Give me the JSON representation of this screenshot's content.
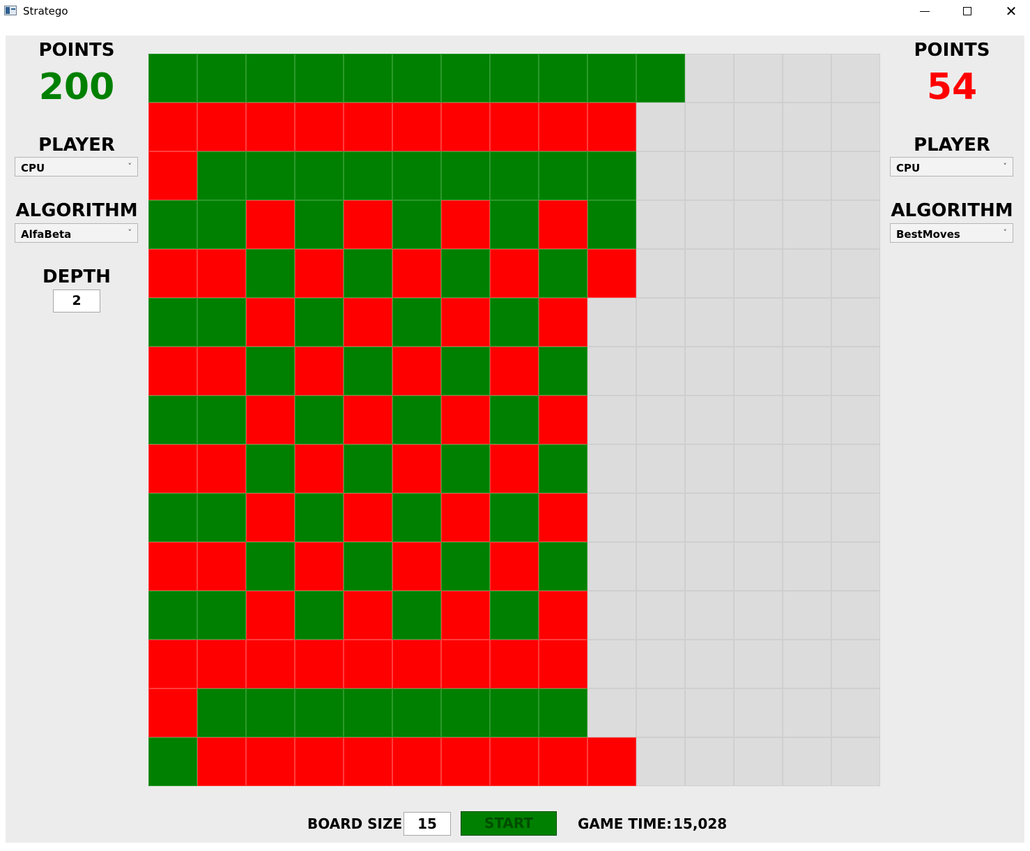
{
  "window": {
    "title": "Stratego",
    "minimize_icon": "minimize-icon",
    "maximize_icon": "maximize-icon",
    "close_glyph": "✕"
  },
  "left_panel": {
    "points_label": "POINTS",
    "points_value": "200",
    "points_color": "#008000",
    "player_label": "PLAYER",
    "player_value": "CPU",
    "algorithm_label": "ALGORITHM",
    "algorithm_value": "AlfaBeta",
    "depth_label": "DEPTH",
    "depth_value": "2"
  },
  "right_panel": {
    "points_label": "POINTS",
    "points_value": "54",
    "points_color": "#ff0000",
    "player_label": "PLAYER",
    "player_value": "CPU",
    "algorithm_label": "ALGORITHM",
    "algorithm_value": "BestMoves"
  },
  "board": {
    "size": 15,
    "colors": {
      "G": "#008000",
      "R": "#ff0000",
      "empty": "#dcdcdc"
    },
    "rows": [
      "GGGGGGGGGGG....",
      "RRRRRRRRRR.....",
      "RGGGGGGGGG.....",
      "GGRGRGRGRG.....",
      "RRGRGRGRGR.....",
      "GGRGRGRGR......",
      "RRGRGRGRG......",
      "GGRGRGRGR......",
      "RRGRGRGRG......",
      "GGRGRGRGR......",
      "RRGRGRGRG......",
      "GGRGRGRGR......",
      "RRRRRRRRR......",
      "RGGGGGGGG......",
      "GRRRRRRRRR....."
    ]
  },
  "bottom": {
    "board_size_label": "BOARD SIZE:",
    "board_size_value": "15",
    "start_label": "START",
    "game_time_label": "GAME TIME:",
    "game_time_value": "15,028"
  }
}
